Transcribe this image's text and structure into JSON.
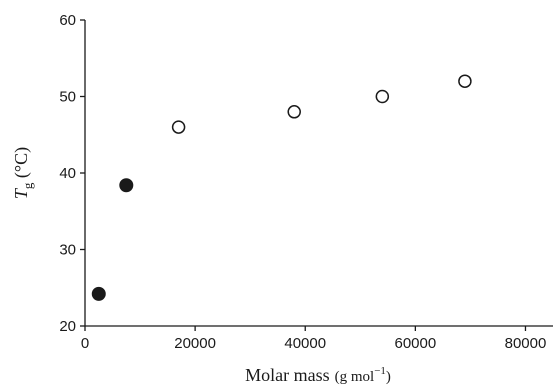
{
  "chart_data": {
    "type": "scatter",
    "title": "",
    "xlabel": {
      "main": "Molar mass",
      "unit_prefix": "(g mol",
      "unit_sup": "−1",
      "unit_suffix": ")"
    },
    "ylabel": {
      "symbol": "T",
      "subscript": "g",
      "unit": " (°C)"
    },
    "xlim": [
      0,
      85000
    ],
    "ylim": [
      20,
      60
    ],
    "xticks": [
      0,
      20000,
      40000,
      60000,
      80000
    ],
    "xtick_labels": [
      "0",
      "20000",
      "40000",
      "60000",
      "80000"
    ],
    "yticks": [
      20,
      30,
      40,
      50,
      60
    ],
    "ytick_labels": [
      "20",
      "30",
      "40",
      "50",
      "60"
    ],
    "grid": false,
    "series": [
      {
        "marker": "filled-circle",
        "color": "#1a1a1a",
        "x": [
          2500,
          7500
        ],
        "y": [
          24.2,
          38.4
        ]
      },
      {
        "marker": "open-circle",
        "color": "#1a1a1a",
        "x": [
          17000,
          38000,
          54000,
          69000
        ],
        "y": [
          46,
          48,
          50,
          52
        ]
      }
    ]
  }
}
